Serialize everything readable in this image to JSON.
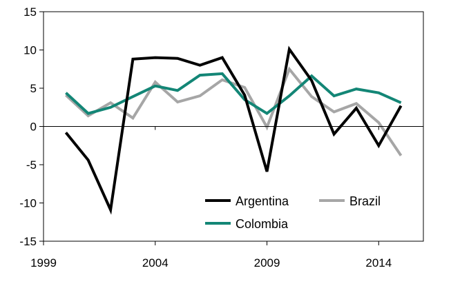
{
  "chart_data": {
    "type": "line",
    "title": "",
    "xlabel": "",
    "ylabel": "",
    "x": [
      2000,
      2001,
      2002,
      2003,
      2004,
      2005,
      2006,
      2007,
      2008,
      2009,
      2010,
      2011,
      2012,
      2013,
      2014,
      2015
    ],
    "xlim": [
      1999,
      2016
    ],
    "ylim": [
      -15,
      15
    ],
    "x_ticks": [
      "1999",
      "2004",
      "2009",
      "2014"
    ],
    "y_ticks": [
      "15",
      "10",
      "5",
      "0",
      "-5",
      "-10",
      "-15"
    ],
    "legend_position": "bottom-right",
    "grid": false,
    "series": [
      {
        "name": "Argentina",
        "color": "#000000",
        "values": [
          -0.8,
          -4.4,
          -10.9,
          8.8,
          9.0,
          8.9,
          8.0,
          9.0,
          4.1,
          -5.9,
          10.1,
          6.0,
          -1.0,
          2.4,
          -2.5,
          2.7
        ]
      },
      {
        "name": "Brazil",
        "color": "#a6a6a6",
        "values": [
          4.1,
          1.4,
          3.1,
          1.1,
          5.8,
          3.2,
          4.0,
          6.1,
          5.1,
          -0.1,
          7.5,
          3.9,
          1.9,
          3.0,
          0.5,
          -3.8
        ]
      },
      {
        "name": "Colombia",
        "color": "#138676",
        "values": [
          4.4,
          1.7,
          2.5,
          3.9,
          5.3,
          4.7,
          6.7,
          6.9,
          3.5,
          1.7,
          4.0,
          6.6,
          4.0,
          4.9,
          4.4,
          3.1
        ]
      }
    ]
  }
}
